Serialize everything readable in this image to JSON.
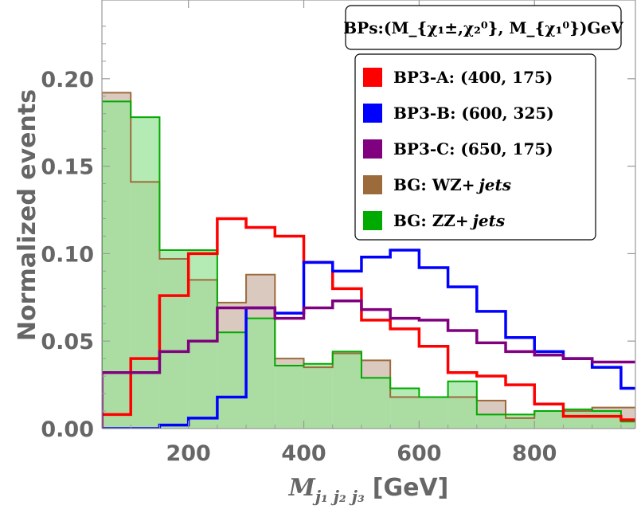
{
  "chart_data": {
    "type": "histogram",
    "xlabel_main": "M",
    "xlabel_sub": "j₁ j₂ j₃",
    "xlabel_unit": "[GeV]",
    "ylabel": "Normalized events",
    "xlim": [
      50,
      975
    ],
    "ylim": [
      0,
      0.245
    ],
    "xticks": [
      {
        "value": 200,
        "label": "200"
      },
      {
        "value": 400,
        "label": "400"
      },
      {
        "value": 600,
        "label": "600"
      },
      {
        "value": 800,
        "label": "800"
      }
    ],
    "yticks": [
      {
        "value": 0.0,
        "label": "0.00"
      },
      {
        "value": 0.05,
        "label": "0.05"
      },
      {
        "value": 0.1,
        "label": "0.10"
      },
      {
        "value": 0.15,
        "label": "0.15"
      },
      {
        "value": 0.2,
        "label": "0.20"
      }
    ],
    "bin_edges": [
      50,
      100,
      150,
      200,
      250,
      300,
      350,
      400,
      450,
      500,
      550,
      600,
      650,
      700,
      750,
      800,
      850,
      900,
      950,
      1000
    ],
    "legend_header": "BPs:(M_{χ₁±,χ₂⁰}, M_{χ₁⁰})GeV",
    "series": [
      {
        "key": "wz",
        "name": "BG: WZ+ jets",
        "legend_main": "BG: WZ+",
        "legend_italic": "jets",
        "color": "#9c6b3c",
        "fill": "#d9c9bf",
        "filled": true,
        "values": [
          0.192,
          0.141,
          0.097,
          0.085,
          0.072,
          0.088,
          0.04,
          0.035,
          0.043,
          0.039,
          0.018,
          0.018,
          0.018,
          0.016,
          0.006,
          0.01,
          0.01,
          0.012,
          0.012
        ]
      },
      {
        "key": "zz",
        "name": "BG: ZZ+ jets",
        "legend_main": "BG: ZZ+",
        "legend_italic": "jets",
        "color": "#00aa00",
        "fill": "#9be39a",
        "filled": true,
        "values": [
          0.187,
          0.178,
          0.102,
          0.102,
          0.055,
          0.063,
          0.036,
          0.037,
          0.044,
          0.029,
          0.023,
          0.018,
          0.027,
          0.008,
          0.008,
          0.01,
          0.011,
          0.01,
          0.004
        ]
      },
      {
        "key": "bp3a",
        "name": "BP3-A: (400, 175)",
        "legend_main": "BP3-A: (400, 175)",
        "color": "#ff0000",
        "filled": false,
        "values": [
          0.008,
          0.04,
          0.076,
          0.1,
          0.12,
          0.115,
          0.11,
          0.095,
          0.08,
          0.062,
          0.057,
          0.047,
          0.032,
          0.03,
          0.025,
          0.014,
          0.007,
          0.007,
          0.005
        ]
      },
      {
        "key": "bp3b",
        "name": "BP3-B: (600, 325)",
        "legend_main": "BP3-B: (600, 325)",
        "color": "#0000ff",
        "filled": false,
        "values": [
          0.0,
          0.0,
          0.002,
          0.006,
          0.018,
          0.069,
          0.066,
          0.095,
          0.09,
          0.098,
          0.102,
          0.092,
          0.081,
          0.067,
          0.052,
          0.044,
          0.04,
          0.035,
          0.023
        ]
      },
      {
        "key": "bp3c",
        "name": "BP3-C: (650, 175)",
        "legend_main": "BP3-C: (650, 175)",
        "color": "#800080",
        "filled": false,
        "values": [
          0.032,
          0.032,
          0.044,
          0.05,
          0.069,
          0.069,
          0.063,
          0.069,
          0.073,
          0.068,
          0.063,
          0.062,
          0.056,
          0.049,
          0.044,
          0.042,
          0.04,
          0.038,
          0.038
        ]
      }
    ],
    "legend_order": [
      "bp3a",
      "bp3b",
      "bp3c",
      "wz",
      "zz"
    ],
    "grid": false,
    "legend_position": "top-right"
  }
}
